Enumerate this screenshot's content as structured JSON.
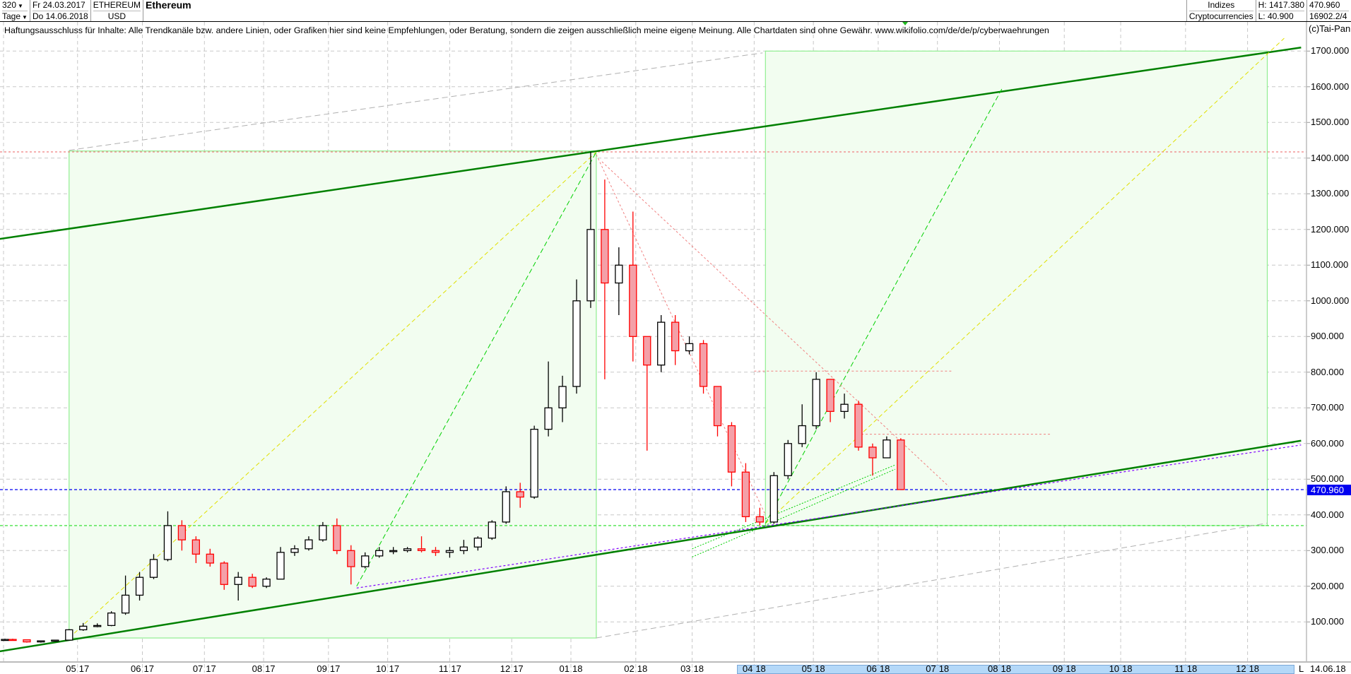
{
  "header": {
    "count": "320",
    "period": "Tage",
    "from_date": "Fr 24.03.2017",
    "to_date": "Do 14.06.2018",
    "symbol": "ETHEREUM",
    "currency": "USD",
    "name": "Ethereum",
    "group": "Indizes",
    "subgroup": "Cryptocurrencies",
    "high": "H: 1417.380",
    "low": "L: 40.900",
    "last": "470.960",
    "info": "16902.2/4"
  },
  "disclaimer": "Haftungsausschluss für Inhalte: Alle Trendkanäle bzw. andere Linien, oder Grafiken hier sind keine Empfehlungen, oder Beratung, sondern die zeigen ausschließlich meine eigene Meinung. Alle Chartdaten sind ohne Gewähr.  www.wikifolio.com/de/de/p/cyberwaehrungen",
  "copyright": "(c)Tai-Pan",
  "footer": {
    "mode": "L",
    "date": "14.06.18"
  },
  "colors": {
    "up_fill": "#ffffff",
    "down_fill": "#f4a0a8",
    "down_stroke": "#ff0000",
    "channel": "#008000",
    "box": "#f2fdf0",
    "last_price": "#0000f0"
  },
  "chart_data": {
    "type": "candlestick",
    "interval": "weekly aggregate of daily bars",
    "start": "24.03.2017",
    "ylim": [
      0,
      1760
    ],
    "yticks": [
      "100.000",
      "200.000",
      "300.000",
      "400.000",
      "500.000",
      "600.000",
      "700.000",
      "800.000",
      "900.000",
      "1000.000",
      "1100.000",
      "1200.000",
      "1300.000",
      "1400.000",
      "1500.000",
      "1600.000",
      "1700.000"
    ],
    "ytick_values": [
      100,
      200,
      300,
      400,
      500,
      600,
      700,
      800,
      900,
      1000,
      1100,
      1200,
      1300,
      1400,
      1500,
      1600,
      1700
    ],
    "xticks": [
      {
        "date": "01.05.2017",
        "m": "05",
        "y": "17"
      },
      {
        "date": "01.06.2017",
        "m": "06",
        "y": "17"
      },
      {
        "date": "01.07.2017",
        "m": "07",
        "y": "17"
      },
      {
        "date": "01.08.2017",
        "m": "08",
        "y": "17"
      },
      {
        "date": "01.09.2017",
        "m": "09",
        "y": "17"
      },
      {
        "date": "01.10.2017",
        "m": "10",
        "y": "17"
      },
      {
        "date": "01.11.2017",
        "m": "11",
        "y": "17"
      },
      {
        "date": "01.12.2017",
        "m": "12",
        "y": "17"
      },
      {
        "date": "01.01.2018",
        "m": "01",
        "y": "18"
      },
      {
        "date": "01.02.2018",
        "m": "02",
        "y": "18"
      },
      {
        "date": "01.03.2018",
        "m": "03",
        "y": "18"
      },
      {
        "date": "01.04.2018",
        "m": "04",
        "y": "18"
      },
      {
        "date": "01.05.2018",
        "m": "05",
        "y": "18"
      },
      {
        "date": "01.06.2018",
        "m": "06",
        "y": "18"
      },
      {
        "date": "01.07.2018",
        "m": "07",
        "y": "18"
      },
      {
        "date": "01.08.2018",
        "m": "08",
        "y": "18"
      },
      {
        "date": "01.09.2018",
        "m": "09",
        "y": "18"
      },
      {
        "date": "01.10.2018",
        "m": "10",
        "y": "18"
      },
      {
        "date": "01.11.2018",
        "m": "11",
        "y": "18"
      },
      {
        "date": "01.12.2018",
        "m": "12",
        "y": "18"
      }
    ],
    "last_price": 470.96,
    "last_price_label": "470.960",
    "candles": [
      [
        "24.03.2017",
        50,
        53,
        47,
        51
      ],
      [
        "27.03.2017",
        51,
        53,
        48,
        50
      ],
      [
        "03.04.2017",
        50,
        51,
        42,
        44
      ],
      [
        "10.04.2017",
        44,
        48,
        42,
        47
      ],
      [
        "17.04.2017",
        47,
        50,
        46,
        49
      ],
      [
        "24.04.2017",
        49,
        80,
        48,
        78
      ],
      [
        "01.05.2017",
        78,
        97,
        75,
        88
      ],
      [
        "08.05.2017",
        88,
        96,
        85,
        90
      ],
      [
        "15.05.2017",
        90,
        130,
        88,
        125
      ],
      [
        "22.05.2017",
        125,
        230,
        120,
        175
      ],
      [
        "29.05.2017",
        175,
        240,
        160,
        225
      ],
      [
        "05.06.2017",
        225,
        290,
        220,
        275
      ],
      [
        "12.06.2017",
        275,
        410,
        270,
        370
      ],
      [
        "19.06.2017",
        370,
        385,
        300,
        330
      ],
      [
        "26.06.2017",
        330,
        340,
        265,
        290
      ],
      [
        "03.07.2017",
        290,
        305,
        255,
        265
      ],
      [
        "10.07.2017",
        265,
        270,
        190,
        205
      ],
      [
        "17.07.2017",
        205,
        240,
        160,
        225
      ],
      [
        "24.07.2017",
        225,
        235,
        195,
        200
      ],
      [
        "31.07.2017",
        200,
        225,
        195,
        220
      ],
      [
        "07.08.2017",
        220,
        310,
        220,
        295
      ],
      [
        "14.08.2017",
        295,
        315,
        285,
        305
      ],
      [
        "21.08.2017",
        305,
        340,
        300,
        330
      ],
      [
        "28.08.2017",
        330,
        380,
        325,
        370
      ],
      [
        "04.09.2017",
        370,
        390,
        290,
        300
      ],
      [
        "11.09.2017",
        300,
        315,
        205,
        255
      ],
      [
        "18.09.2017",
        255,
        295,
        250,
        285
      ],
      [
        "25.09.2017",
        285,
        310,
        280,
        300
      ],
      [
        "02.10.2017",
        300,
        310,
        290,
        300
      ],
      [
        "09.10.2017",
        300,
        310,
        295,
        305
      ],
      [
        "16.10.2017",
        305,
        340,
        295,
        300
      ],
      [
        "23.10.2017",
        300,
        310,
        285,
        295
      ],
      [
        "30.10.2017",
        295,
        310,
        280,
        300
      ],
      [
        "06.11.2017",
        300,
        330,
        290,
        310
      ],
      [
        "13.11.2017",
        310,
        340,
        300,
        335
      ],
      [
        "20.11.2017",
        335,
        385,
        330,
        380
      ],
      [
        "27.11.2017",
        380,
        480,
        375,
        465
      ],
      [
        "04.12.2017",
        465,
        490,
        420,
        450
      ],
      [
        "11.12.2017",
        450,
        650,
        445,
        640
      ],
      [
        "18.12.2017",
        640,
        830,
        620,
        700
      ],
      [
        "25.12.2017",
        700,
        790,
        660,
        760
      ],
      [
        "01.01.2018",
        760,
        1060,
        740,
        1000
      ],
      [
        "08.01.2018",
        1000,
        1418,
        980,
        1200
      ],
      [
        "15.01.2018",
        1200,
        1340,
        780,
        1050
      ],
      [
        "22.01.2018",
        1050,
        1150,
        960,
        1100
      ],
      [
        "29.01.2018",
        1100,
        1250,
        830,
        900
      ],
      [
        "05.02.2018",
        900,
        900,
        580,
        820
      ],
      [
        "12.02.2018",
        820,
        960,
        800,
        940
      ],
      [
        "19.02.2018",
        940,
        960,
        820,
        860
      ],
      [
        "26.02.2018",
        860,
        900,
        850,
        880
      ],
      [
        "05.03.2018",
        880,
        890,
        740,
        760
      ],
      [
        "12.03.2018",
        760,
        760,
        620,
        650
      ],
      [
        "19.03.2018",
        650,
        660,
        480,
        520
      ],
      [
        "26.03.2018",
        520,
        545,
        380,
        395
      ],
      [
        "02.04.2018",
        395,
        420,
        370,
        380
      ],
      [
        "09.04.2018",
        380,
        520,
        375,
        510
      ],
      [
        "16.04.2018",
        510,
        610,
        500,
        600
      ],
      [
        "23.04.2018",
        600,
        710,
        590,
        650
      ],
      [
        "30.04.2018",
        650,
        800,
        640,
        780
      ],
      [
        "07.05.2018",
        780,
        780,
        660,
        690
      ],
      [
        "14.05.2018",
        690,
        740,
        670,
        710
      ],
      [
        "21.05.2018",
        710,
        720,
        580,
        590
      ],
      [
        "28.05.2018",
        590,
        600,
        510,
        560
      ],
      [
        "04.06.2018",
        560,
        620,
        560,
        610
      ],
      [
        "11.06.2018",
        610,
        615,
        470,
        471
      ]
    ],
    "drawings": [
      {
        "kind": "upper-channel",
        "color": "#008000",
        "width": 2.5,
        "dash": "",
        "p1": [
          "22.03.2017",
          1173
        ],
        "p2": [
          "28.12.2018",
          1710
        ]
      },
      {
        "kind": "lower-channel",
        "color": "#008000",
        "width": 2.5,
        "dash": "",
        "p1": [
          "22.03.2017",
          17
        ],
        "p2": [
          "28.12.2018",
          608
        ]
      },
      {
        "kind": "support-dotted",
        "color": "#8000ff",
        "width": 1.2,
        "dash": "3,3",
        "p1": [
          "15.09.2017",
          195
        ],
        "p2": [
          "28.12.2018",
          596
        ]
      },
      {
        "kind": "grey-upper",
        "color": "#b0b0b0",
        "width": 1,
        "dash": "8,5",
        "p1": [
          "26.04.2017",
          1422
        ],
        "p2": [
          "05.04.2018",
          1695
        ]
      },
      {
        "kind": "grey-lower",
        "color": "#b0b0b0",
        "width": 1,
        "dash": "8,5",
        "p1": [
          "12.01.2018",
          55
        ],
        "p2": [
          "12.12.2018",
          377
        ]
      },
      {
        "kind": "yellow-left",
        "color": "#e0e000",
        "width": 1,
        "dash": "6,4",
        "p1": [
          "26.04.2017",
          55
        ],
        "p2": [
          "12.01.2018",
          1417
        ]
      },
      {
        "kind": "yellow-right",
        "color": "#e0e000",
        "width": 1,
        "dash": "6,4",
        "p1": [
          "06.04.2018",
          376
        ],
        "p2": [
          "20.12.2018",
          1736
        ]
      },
      {
        "kind": "green-left",
        "color": "#00d000",
        "width": 1,
        "dash": "7,4",
        "p1": [
          "15.09.2017",
          200
        ],
        "p2": [
          "12.01.2018",
          1417
        ]
      },
      {
        "kind": "green-right",
        "color": "#00d000",
        "width": 1,
        "dash": "7,4",
        "p1": [
          "06.04.2018",
          376
        ],
        "p2": [
          "02.08.2018",
          1596
        ]
      },
      {
        "kind": "red-down-1",
        "color": "#f08080",
        "width": 1,
        "dash": "3,3",
        "p1": [
          "12.01.2018",
          1410
        ],
        "p2": [
          "06.04.2018",
          400
        ]
      },
      {
        "kind": "red-down-2",
        "color": "#f08080",
        "width": 1,
        "dash": "3,3",
        "p1": [
          "16.01.2018",
          1390
        ],
        "p2": [
          "06.07.2018",
          480
        ]
      },
      {
        "kind": "red-h-1",
        "color": "#f08080",
        "width": 1,
        "dash": "3,3",
        "p1": [
          "02.04.2018",
          803
        ],
        "p2": [
          "09.07.2018",
          803
        ]
      },
      {
        "kind": "red-h-2",
        "color": "#f08080",
        "width": 1,
        "dash": "3,3",
        "p1": [
          "24.05.2018",
          626
        ],
        "p2": [
          "27.08.2018",
          626
        ]
      },
      {
        "kind": "fan-1",
        "color": "#00d000",
        "width": 1,
        "dash": "2,2",
        "p1": [
          "01.03.2018",
          282
        ],
        "p2": [
          "11.06.2018",
          528
        ]
      },
      {
        "kind": "fan-2",
        "color": "#00d000",
        "width": 1,
        "dash": "2,2",
        "p1": [
          "01.03.2018",
          305
        ],
        "p2": [
          "11.06.2018",
          540
        ]
      }
    ],
    "horizontals": [
      {
        "kind": "ath",
        "price": 1417.38,
        "color": "#f08080",
        "dash": "3,3"
      },
      {
        "kind": "last",
        "price": 470.96,
        "color": "#0000f0",
        "dash": "4,3"
      },
      {
        "kind": "support",
        "price": 370,
        "color": "#22dd22",
        "dash": "4,3"
      }
    ],
    "boxes": [
      {
        "kind": "box-left",
        "p1": [
          "26.04.2017",
          55
        ],
        "p2": [
          "12.01.2018",
          1420
        ]
      },
      {
        "kind": "box-right",
        "p1": [
          "06.04.2018",
          370
        ],
        "p2": [
          "12.12.2018",
          1700
        ]
      }
    ]
  }
}
